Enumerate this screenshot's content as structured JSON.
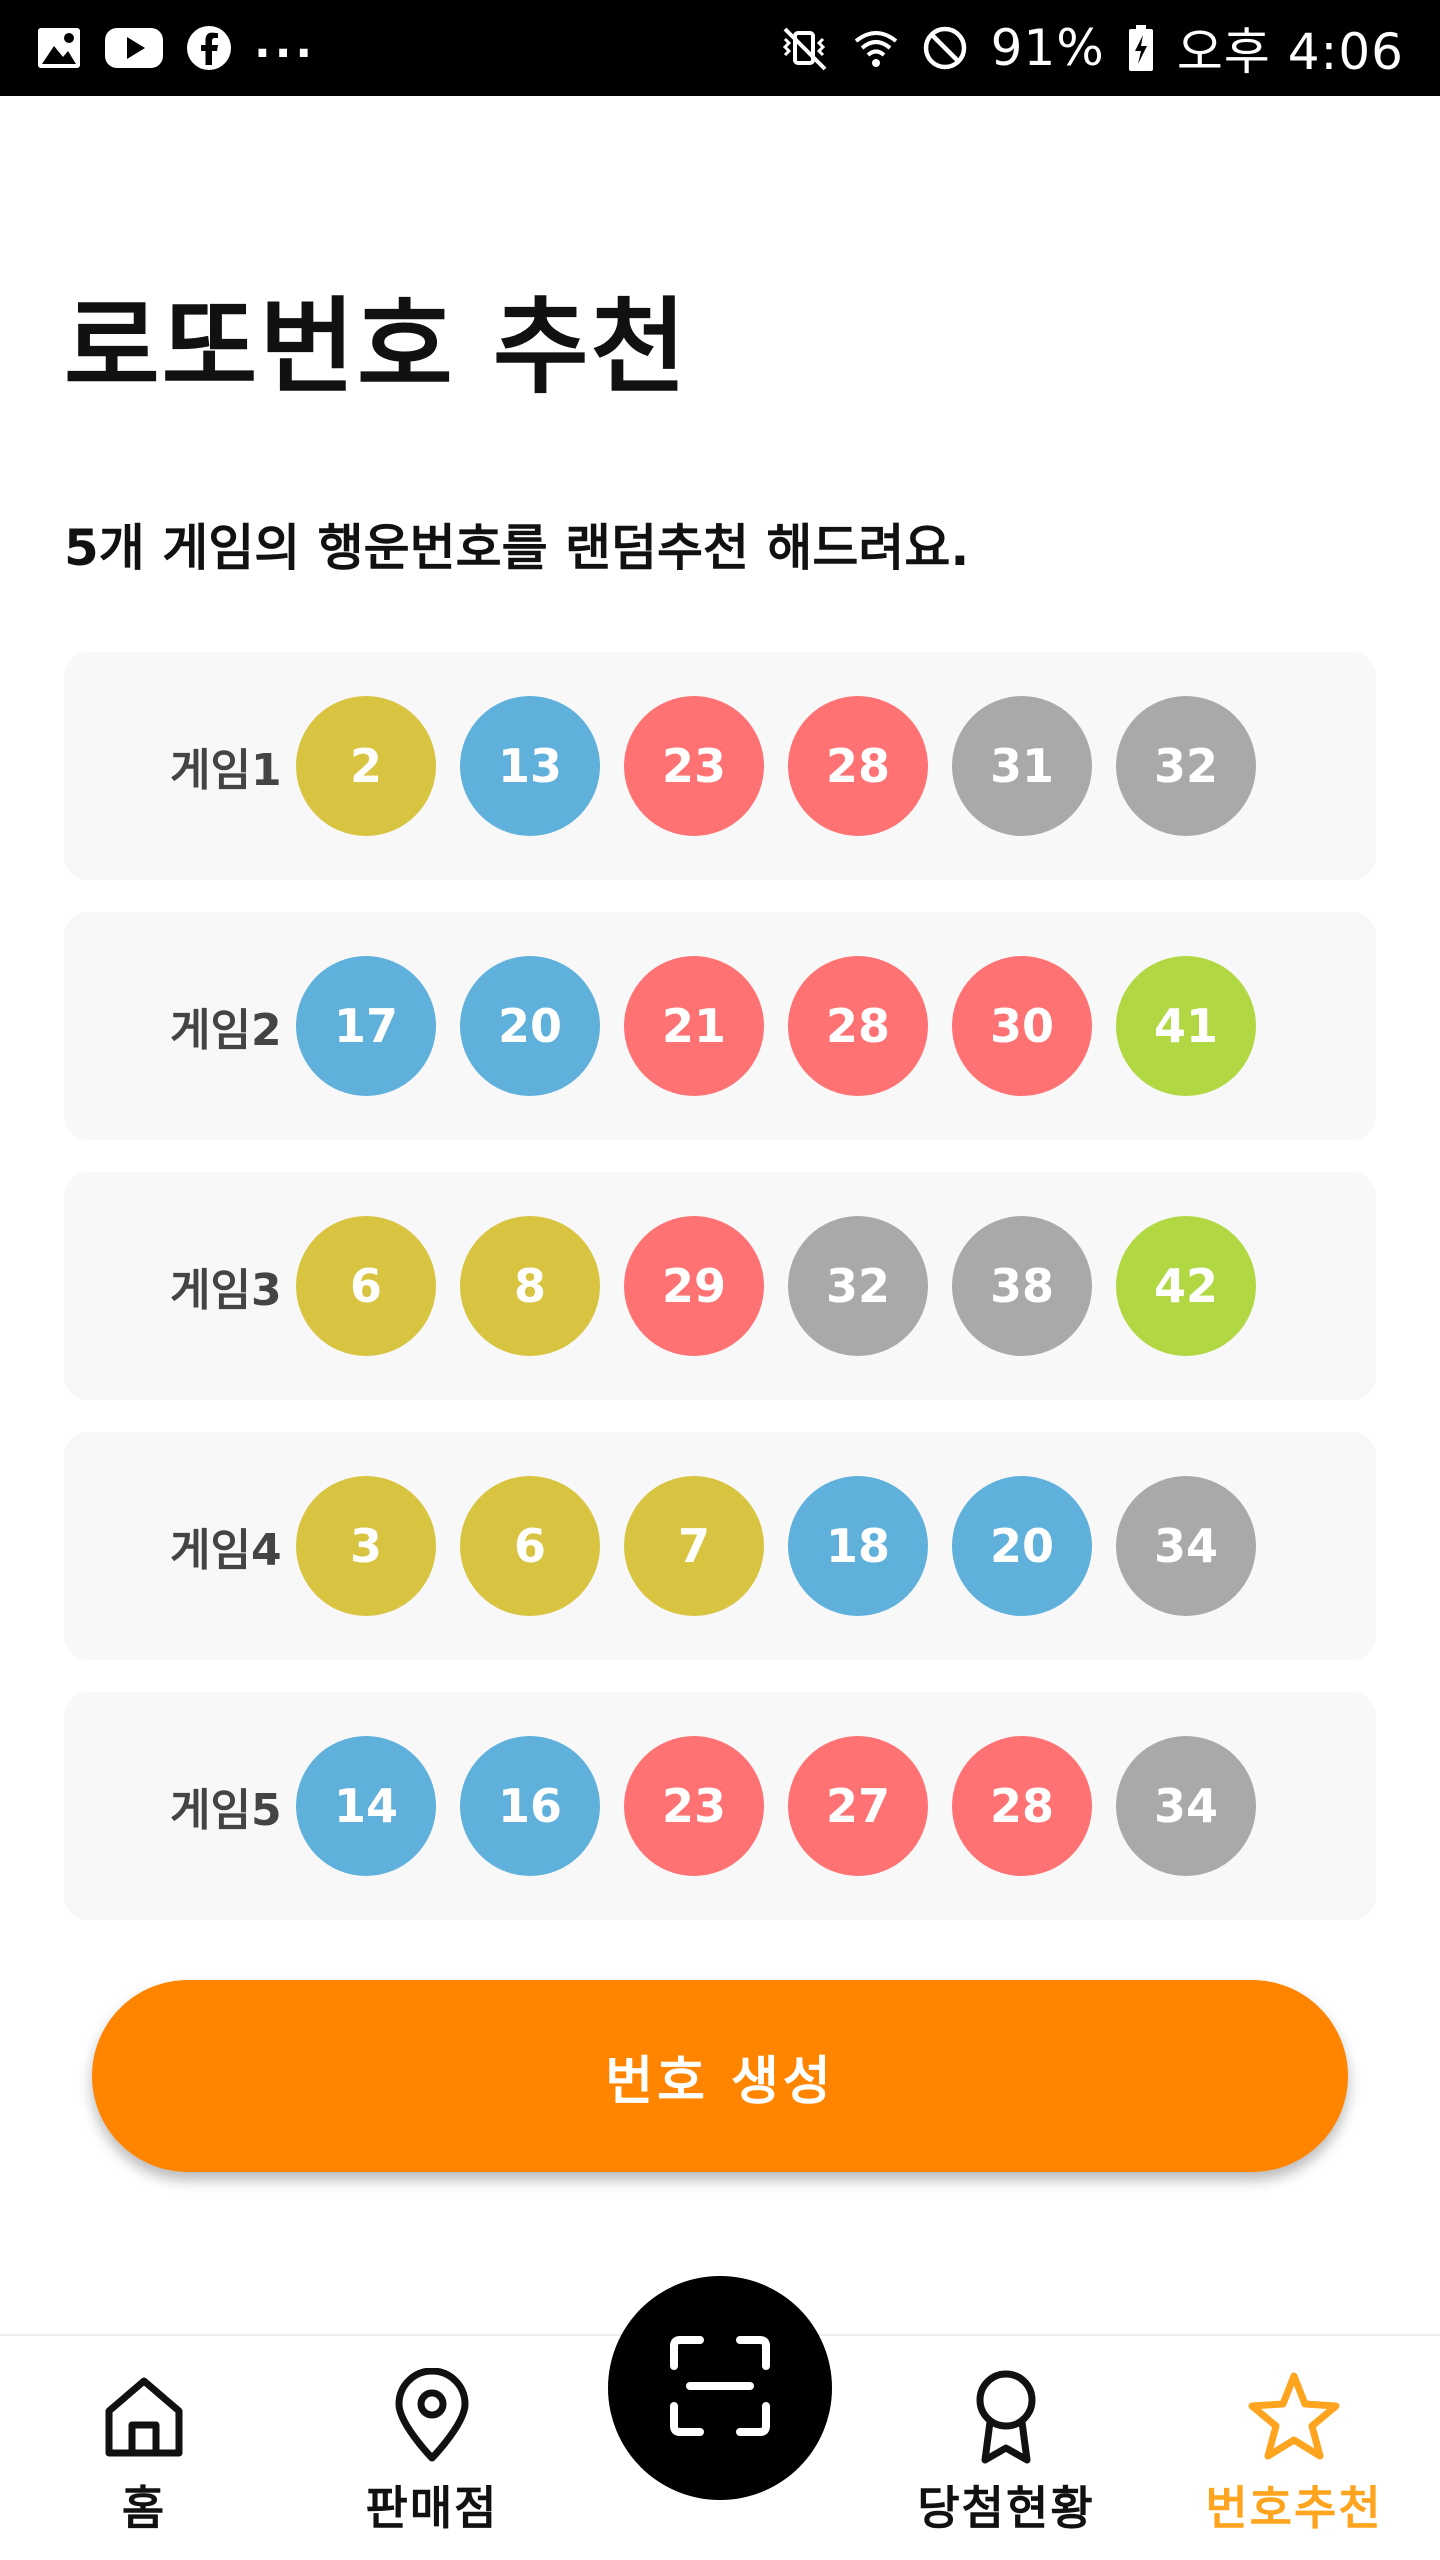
{
  "status_bar": {
    "more": "...",
    "battery": "91%",
    "time": "오후 4:06"
  },
  "page": {
    "title": "로또번호 추천",
    "subtitle": "5개 게임의 행운번호를 랜덤추천 해드려요."
  },
  "colors": {
    "yellow": "#d8c441",
    "blue": "#5fb1dc",
    "red": "#ff7273",
    "gray": "#a9a9a9",
    "green": "#b1d842",
    "accent": "#ff8500",
    "nav_active": "#ffa41e"
  },
  "games": [
    {
      "label": "게임1",
      "numbers": [
        2,
        13,
        23,
        28,
        31,
        32
      ]
    },
    {
      "label": "게임2",
      "numbers": [
        17,
        20,
        21,
        28,
        30,
        41
      ]
    },
    {
      "label": "게임3",
      "numbers": [
        6,
        8,
        29,
        32,
        38,
        42
      ]
    },
    {
      "label": "게임4",
      "numbers": [
        3,
        6,
        7,
        18,
        20,
        34
      ]
    },
    {
      "label": "게임5",
      "numbers": [
        14,
        16,
        23,
        27,
        28,
        34
      ]
    }
  ],
  "generate_button": {
    "label": "번호 생성"
  },
  "bottom_nav": {
    "items": [
      {
        "label": "홈",
        "icon": "home-icon"
      },
      {
        "label": "판매점",
        "icon": "location-pin-icon"
      },
      {
        "label": "당첨현황",
        "icon": "award-ribbon-icon"
      },
      {
        "label": "번호추천",
        "icon": "star-icon",
        "active": true
      }
    ],
    "center_icon": "scan-icon"
  }
}
